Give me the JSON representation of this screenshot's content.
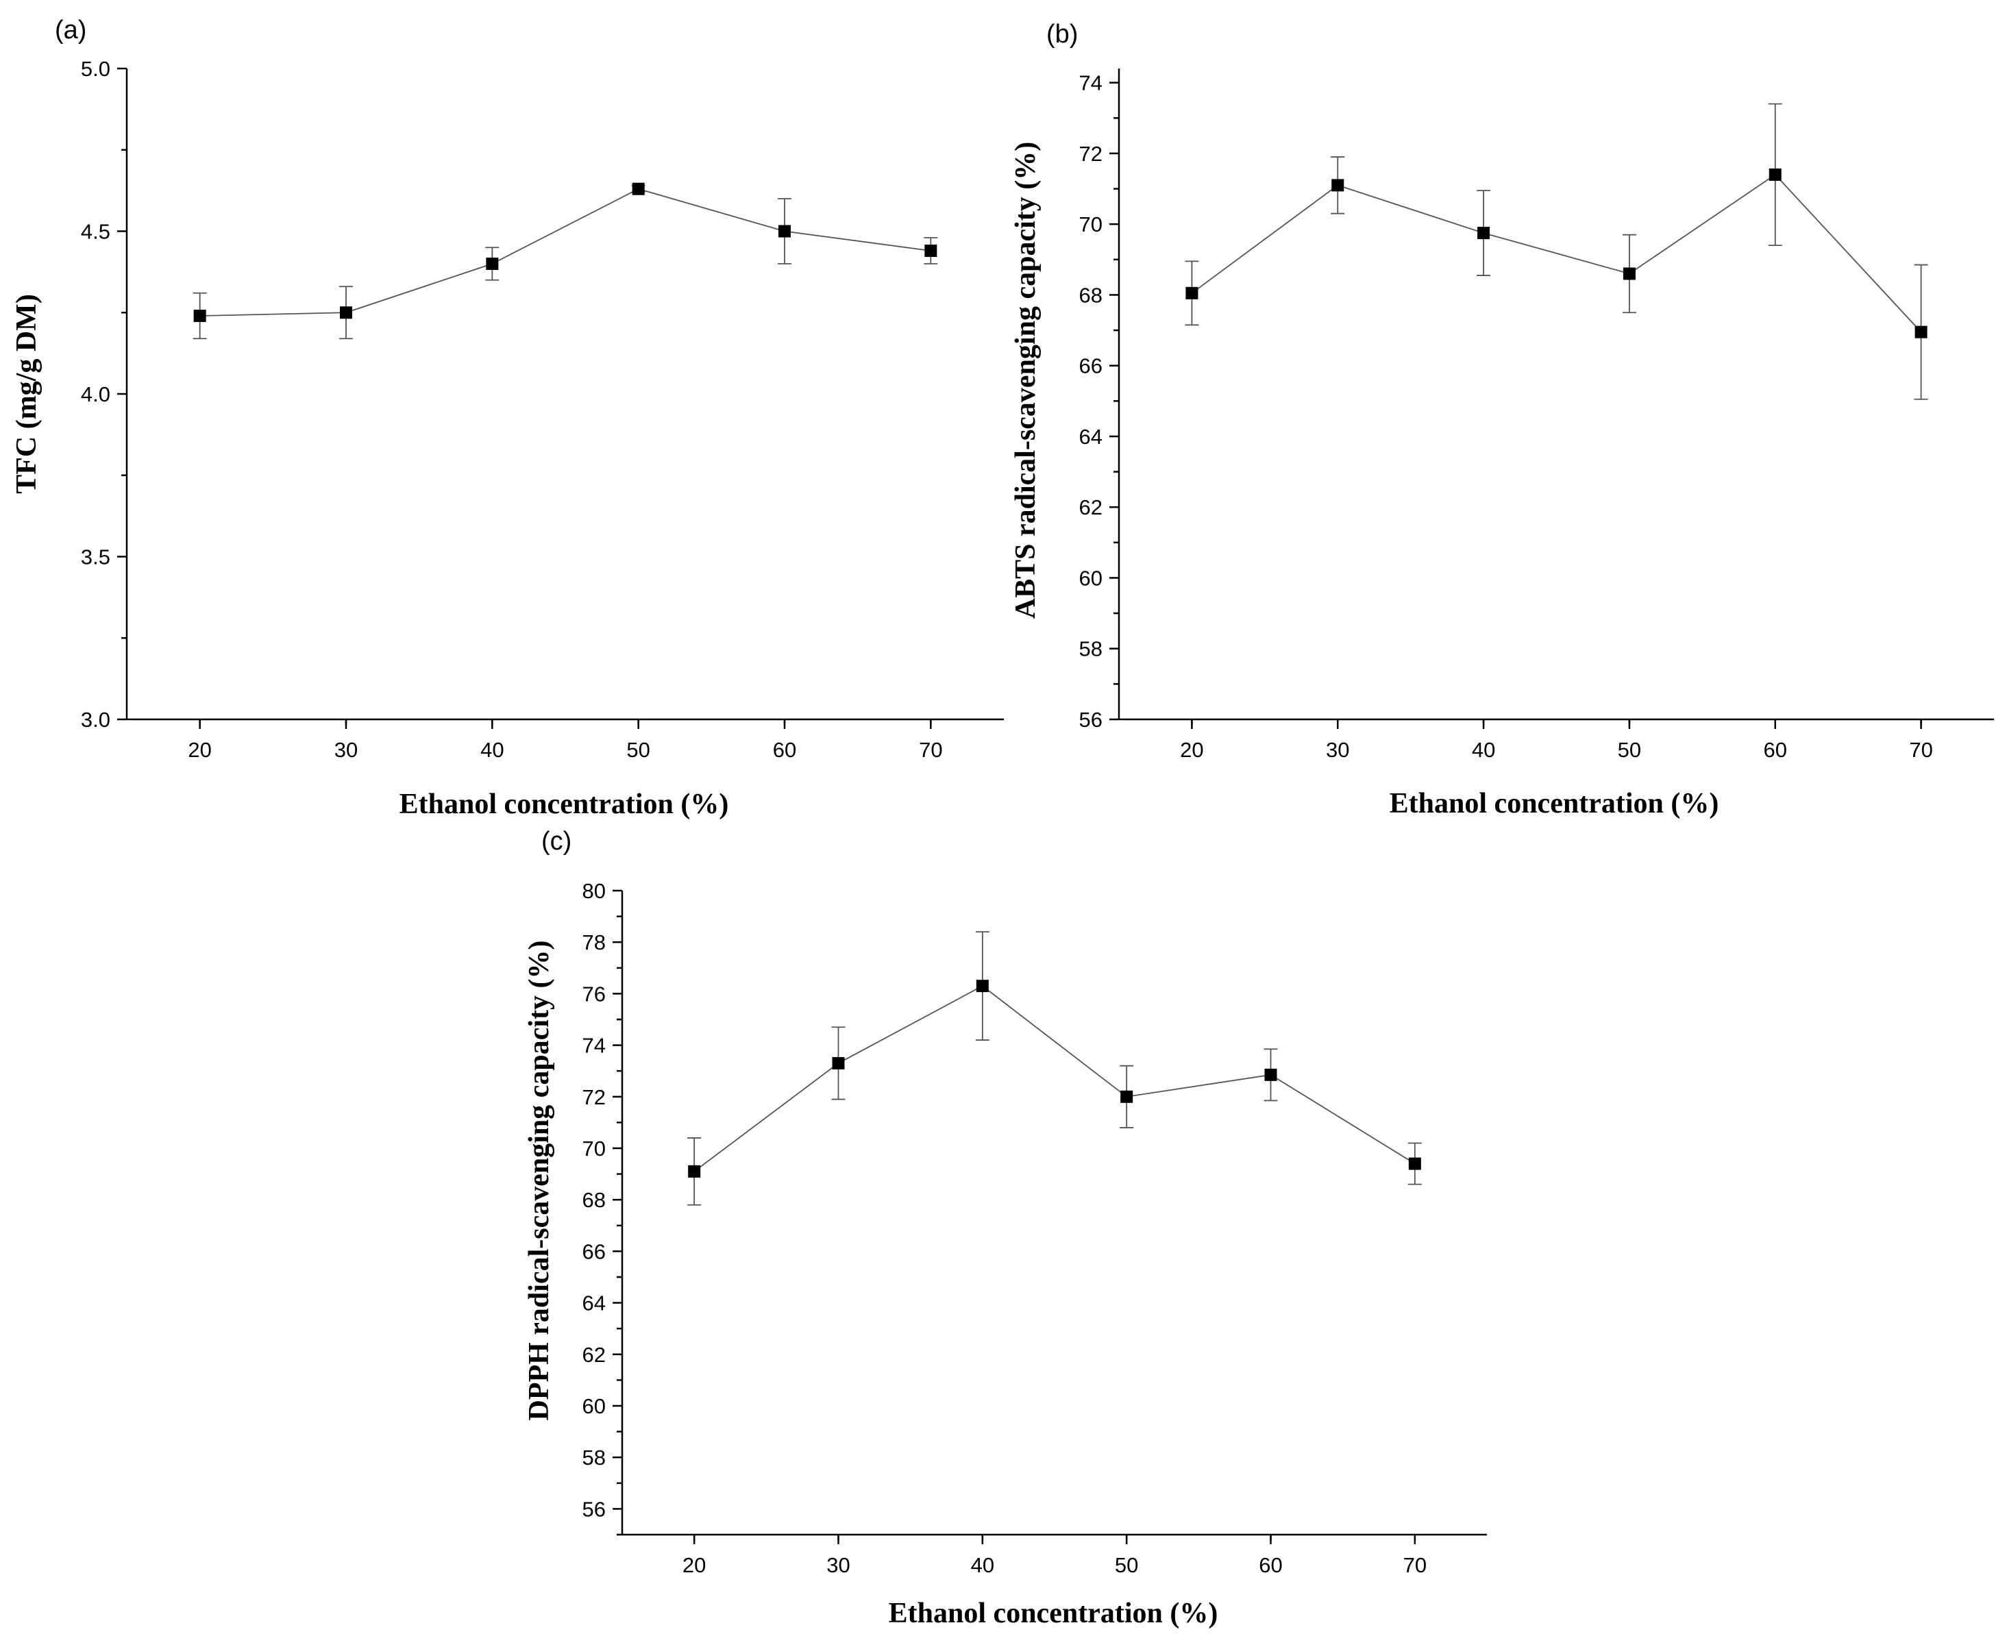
{
  "chart_data": [
    {
      "type": "line",
      "panel_label": "(a)",
      "xlabel": "Ethanol concentration (%)",
      "ylabel": "TFC (mg/g DM)",
      "xlim": [
        15,
        75
      ],
      "ylim": [
        3.0,
        5.0
      ],
      "xticks": [
        20,
        30,
        40,
        50,
        60,
        70
      ],
      "yticks": [
        3.0,
        3.5,
        4.0,
        4.5,
        5.0
      ],
      "ytick_labels": [
        "3.0",
        "3.5",
        "4.0",
        "4.5",
        "5.0"
      ],
      "yminor": 0.25,
      "x": [
        20,
        30,
        40,
        50,
        60,
        70
      ],
      "y": [
        4.24,
        4.25,
        4.4,
        4.63,
        4.5,
        4.44
      ],
      "err": [
        0.07,
        0.08,
        0.05,
        0.01,
        0.1,
        0.04
      ]
    },
    {
      "type": "line",
      "panel_label": "(b)",
      "xlabel": "Ethanol concentration (%)",
      "ylabel": "ABTS radical-scavenging capacity (%)",
      "xlim": [
        15,
        75
      ],
      "ylim": [
        56,
        74.4
      ],
      "xticks": [
        20,
        30,
        40,
        50,
        60,
        70
      ],
      "yticks": [
        56,
        58,
        60,
        62,
        64,
        66,
        68,
        70,
        72,
        74
      ],
      "ytick_labels": [
        "56",
        "58",
        "60",
        "62",
        "64",
        "66",
        "68",
        "70",
        "72",
        "74"
      ],
      "yminor": 1,
      "x": [
        20,
        30,
        40,
        50,
        60,
        70
      ],
      "y": [
        68.05,
        71.1,
        69.75,
        68.6,
        71.4,
        66.95
      ],
      "err": [
        0.9,
        0.8,
        1.2,
        1.1,
        2.0,
        1.9
      ]
    },
    {
      "type": "line",
      "panel_label": "(c)",
      "xlabel": "Ethanol concentration (%)",
      "ylabel": "DPPH radical-scavenging capacity (%)",
      "xlim": [
        15,
        75
      ],
      "ylim": [
        55,
        80
      ],
      "xticks": [
        20,
        30,
        40,
        50,
        60,
        70
      ],
      "yticks": [
        56,
        58,
        60,
        62,
        64,
        66,
        68,
        70,
        72,
        74,
        76,
        78,
        80
      ],
      "ytick_labels": [
        "56",
        "58",
        "60",
        "62",
        "64",
        "66",
        "68",
        "70",
        "72",
        "74",
        "76",
        "78",
        "80"
      ],
      "yminor": 1,
      "x": [
        20,
        30,
        40,
        50,
        60,
        70
      ],
      "y": [
        69.1,
        73.3,
        76.3,
        72.0,
        72.85,
        69.4
      ],
      "err": [
        1.3,
        1.4,
        2.1,
        1.2,
        1.0,
        0.8
      ]
    }
  ]
}
